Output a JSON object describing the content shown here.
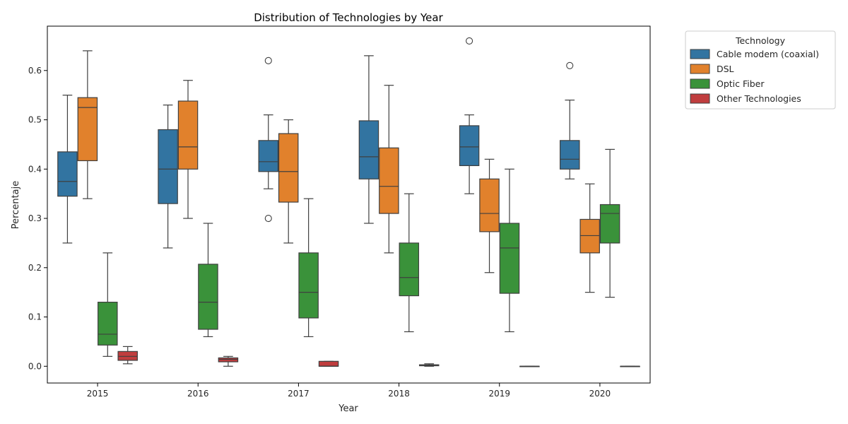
{
  "chart_data": {
    "type": "box",
    "title": "Distribution of Technologies by Year",
    "xlabel": "Year",
    "ylabel": "Percentaje",
    "categories": [
      "2015",
      "2016",
      "2017",
      "2018",
      "2019",
      "2020"
    ],
    "ylim": [
      -0.034,
      0.69
    ],
    "yticks": [
      0.0,
      0.1,
      0.2,
      0.3,
      0.4,
      0.5,
      0.6
    ],
    "ytick_labels": [
      "0.0",
      "0.1",
      "0.2",
      "0.3",
      "0.4",
      "0.5",
      "0.6"
    ],
    "grid": false,
    "legend": {
      "title": "Technology",
      "placement": "outside-top-right"
    },
    "series": [
      {
        "name": "Cable modem (coaxial)",
        "color": "#3274a1",
        "boxes": [
          {
            "q1": 0.345,
            "median": 0.375,
            "q3": 0.435,
            "whisker_low": 0.25,
            "whisker_high": 0.55,
            "outliers": []
          },
          {
            "q1": 0.33,
            "median": 0.4,
            "q3": 0.48,
            "whisker_low": 0.24,
            "whisker_high": 0.53,
            "outliers": []
          },
          {
            "q1": 0.395,
            "median": 0.415,
            "q3": 0.458,
            "whisker_low": 0.36,
            "whisker_high": 0.51,
            "outliers": [
              0.62,
              0.3
            ]
          },
          {
            "q1": 0.38,
            "median": 0.425,
            "q3": 0.498,
            "whisker_low": 0.29,
            "whisker_high": 0.63,
            "outliers": []
          },
          {
            "q1": 0.407,
            "median": 0.445,
            "q3": 0.488,
            "whisker_low": 0.35,
            "whisker_high": 0.51,
            "outliers": [
              0.66
            ]
          },
          {
            "q1": 0.4,
            "median": 0.42,
            "q3": 0.458,
            "whisker_low": 0.38,
            "whisker_high": 0.54,
            "outliers": [
              0.61
            ]
          }
        ]
      },
      {
        "name": "DSL",
        "color": "#e1812c",
        "boxes": [
          {
            "q1": 0.417,
            "median": 0.525,
            "q3": 0.545,
            "whisker_low": 0.34,
            "whisker_high": 0.64,
            "outliers": []
          },
          {
            "q1": 0.4,
            "median": 0.445,
            "q3": 0.538,
            "whisker_low": 0.3,
            "whisker_high": 0.58,
            "outliers": []
          },
          {
            "q1": 0.333,
            "median": 0.395,
            "q3": 0.472,
            "whisker_low": 0.25,
            "whisker_high": 0.5,
            "outliers": []
          },
          {
            "q1": 0.31,
            "median": 0.365,
            "q3": 0.443,
            "whisker_low": 0.23,
            "whisker_high": 0.57,
            "outliers": []
          },
          {
            "q1": 0.273,
            "median": 0.31,
            "q3": 0.38,
            "whisker_low": 0.19,
            "whisker_high": 0.42,
            "outliers": []
          },
          {
            "q1": 0.23,
            "median": 0.265,
            "q3": 0.298,
            "whisker_low": 0.15,
            "whisker_high": 0.37,
            "outliers": []
          }
        ]
      },
      {
        "name": "Optic Fiber",
        "color": "#3a923a",
        "boxes": [
          {
            "q1": 0.043,
            "median": 0.065,
            "q3": 0.13,
            "whisker_low": 0.02,
            "whisker_high": 0.23,
            "outliers": []
          },
          {
            "q1": 0.075,
            "median": 0.13,
            "q3": 0.207,
            "whisker_low": 0.06,
            "whisker_high": 0.29,
            "outliers": []
          },
          {
            "q1": 0.098,
            "median": 0.15,
            "q3": 0.23,
            "whisker_low": 0.06,
            "whisker_high": 0.34,
            "outliers": []
          },
          {
            "q1": 0.143,
            "median": 0.18,
            "q3": 0.25,
            "whisker_low": 0.07,
            "whisker_high": 0.35,
            "outliers": []
          },
          {
            "q1": 0.148,
            "median": 0.24,
            "q3": 0.29,
            "whisker_low": 0.07,
            "whisker_high": 0.4,
            "outliers": []
          },
          {
            "q1": 0.25,
            "median": 0.31,
            "q3": 0.328,
            "whisker_low": 0.14,
            "whisker_high": 0.44,
            "outliers": []
          }
        ]
      },
      {
        "name": "Other Technologies",
        "color": "#c03d3e",
        "boxes": [
          {
            "q1": 0.012,
            "median": 0.02,
            "q3": 0.03,
            "whisker_low": 0.005,
            "whisker_high": 0.04,
            "outliers": []
          },
          {
            "q1": 0.009,
            "median": 0.014,
            "q3": 0.017,
            "whisker_low": 0.0,
            "whisker_high": 0.02,
            "outliers": []
          },
          {
            "q1": 0.0,
            "median": 0.0,
            "q3": 0.01,
            "whisker_low": 0.0,
            "whisker_high": 0.01,
            "outliers": []
          },
          {
            "q1": 0.001,
            "median": 0.002,
            "q3": 0.003,
            "whisker_low": 0.0,
            "whisker_high": 0.005,
            "outliers": []
          },
          {
            "q1": 0.0,
            "median": 0.0,
            "q3": 0.0,
            "whisker_low": 0.0,
            "whisker_high": 0.0,
            "outliers": []
          },
          {
            "q1": 0.0,
            "median": 0.0,
            "q3": 0.0,
            "whisker_low": 0.0,
            "whisker_high": 0.0,
            "outliers": []
          }
        ]
      }
    ]
  }
}
